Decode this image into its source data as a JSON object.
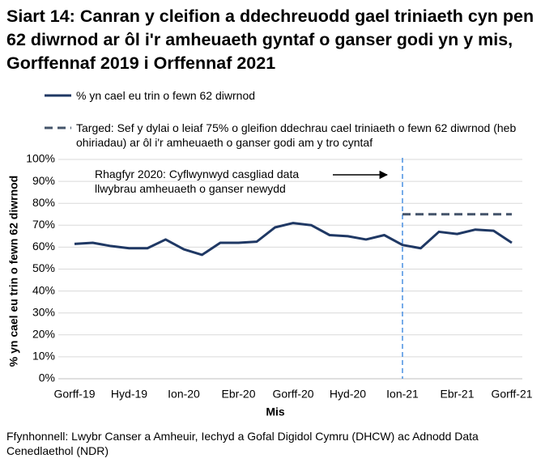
{
  "chart_data": {
    "type": "line",
    "title": "Siart 14: Canran y cleifion a ddechreuodd gael triniaeth cyn pen 62 diwrnod ar ôl i'r amheuaeth gyntaf o ganser godi yn y mis, Gorffennaf 2019 i Orffennaf 2021",
    "categories": [
      "Gorff-19",
      null,
      null,
      "Hyd-19",
      null,
      null,
      "Ion-20",
      null,
      null,
      "Ebr-20",
      null,
      null,
      "Gorff-20",
      null,
      null,
      "Hyd-20",
      null,
      null,
      "Ion-21",
      null,
      null,
      "Ebr-21",
      null,
      null,
      "Gorff-21"
    ],
    "series": [
      {
        "name": "% yn cael eu trin o fewn 62 diwrnod",
        "color": "#1f3864",
        "dashed": false,
        "values": [
          61.5,
          62,
          60.5,
          59.5,
          59.5,
          63.5,
          59,
          56.5,
          62,
          62,
          62.5,
          69,
          71,
          70,
          65.5,
          65,
          63.5,
          65.5,
          61,
          59.5,
          67,
          66,
          68,
          67.5,
          62
        ]
      },
      {
        "name": "Targed: Sef y dylai o leiaf 75% o gleifion ddechrau cael triniaeth o fewn 62 diwrnod (heb ohiriadau) ar ôl i'r amheuaeth o ganser godi am y tro cyntaf",
        "color": "#44546a",
        "dashed": true,
        "values": [
          null,
          null,
          null,
          null,
          null,
          null,
          null,
          null,
          null,
          null,
          null,
          null,
          null,
          null,
          null,
          null,
          null,
          null,
          75,
          75,
          75,
          75,
          75,
          75,
          75
        ]
      }
    ],
    "ylim": [
      0,
      100
    ],
    "yticks": [
      {
        "value": 0,
        "label": "0%"
      },
      {
        "value": 10,
        "label": "10%"
      },
      {
        "value": 20,
        "label": "20%"
      },
      {
        "value": 30,
        "label": "30%"
      },
      {
        "value": 40,
        "label": "40%"
      },
      {
        "value": 50,
        "label": "50%"
      },
      {
        "value": 60,
        "label": "60%"
      },
      {
        "value": 70,
        "label": "70%"
      },
      {
        "value": 80,
        "label": "80%"
      },
      {
        "value": 90,
        "label": "90%"
      },
      {
        "value": 100,
        "label": "100%"
      }
    ],
    "grid": true,
    "y_label": "% yn cael eu trin o fewn 62 diwrnod",
    "x_label": "Mis",
    "annotation": "Rhagfyr 2020: Cyflwynwyd casgliad data llwybrau amheuaeth o ganser newydd",
    "vline_category": "Ion-21",
    "vline_color": "#4a90e2",
    "source": "Ffynhonnell: Lwybr Canser a Amheuir, Iechyd a Gofal Digidol Cymru (DHCW) ac Adnodd Data Cenedlaethol (NDR)"
  }
}
